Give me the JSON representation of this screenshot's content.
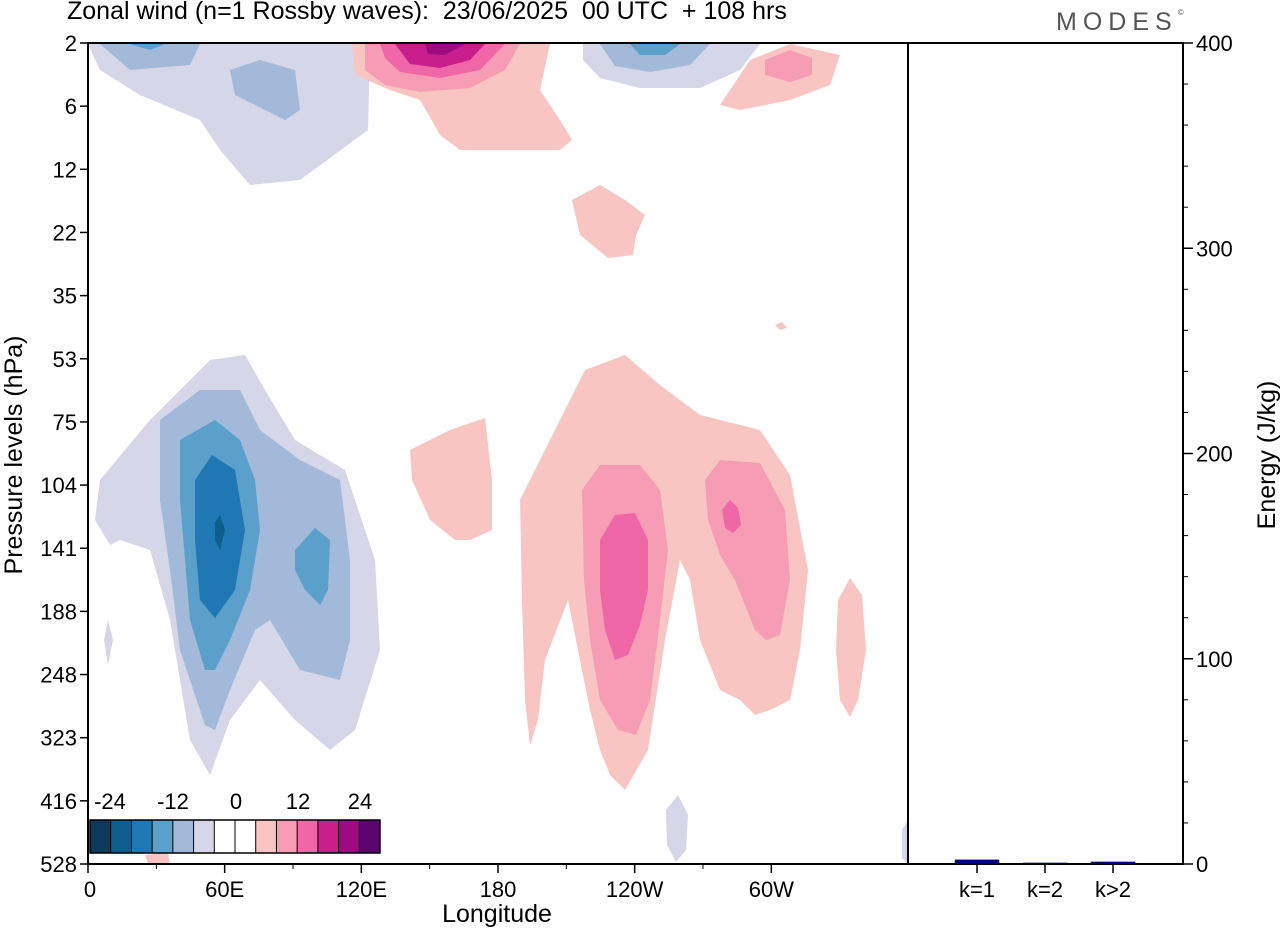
{
  "header": {
    "title": "Zonal wind (n=1 Rossby waves):  23/06/2025  00 UTC  + 108 hrs",
    "logo": "MODES",
    "logo_mark": "©"
  },
  "chart_data": [
    {
      "type": "heatmap",
      "xlabel": "Longitude",
      "ylabel": "Pressure levels (hPa)",
      "x_ticks": [
        "0",
        "60E",
        "120E",
        "180",
        "120W",
        "60W"
      ],
      "y_ticks": [
        "2",
        "6",
        "12",
        "22",
        "35",
        "53",
        "75",
        "104",
        "141",
        "188",
        "248",
        "323",
        "416",
        "528"
      ],
      "colorbar": {
        "tick_labels": [
          "-24",
          "-12",
          "0",
          "12",
          "24"
        ],
        "colors": [
          "#0d3a5b",
          "#0f5e8d",
          "#1f78b4",
          "#5ba0cb",
          "#a2b9d9",
          "#d5d6e8",
          "#ffffff",
          "#ffffff",
          "#f8c5c3",
          "#f79cb5",
          "#f067a7",
          "#c81f8c",
          "#9c0b82",
          "#5b0470"
        ]
      }
    },
    {
      "type": "bar",
      "categories": [
        "k=1",
        "k=2",
        "k>2"
      ],
      "values": [
        2,
        0.5,
        1
      ],
      "ylabel": "Energy (J/kg)",
      "ylim": [
        0,
        400
      ],
      "y_ticks": [
        0,
        100,
        200,
        300,
        400
      ],
      "bar_color": "#00008b"
    }
  ]
}
